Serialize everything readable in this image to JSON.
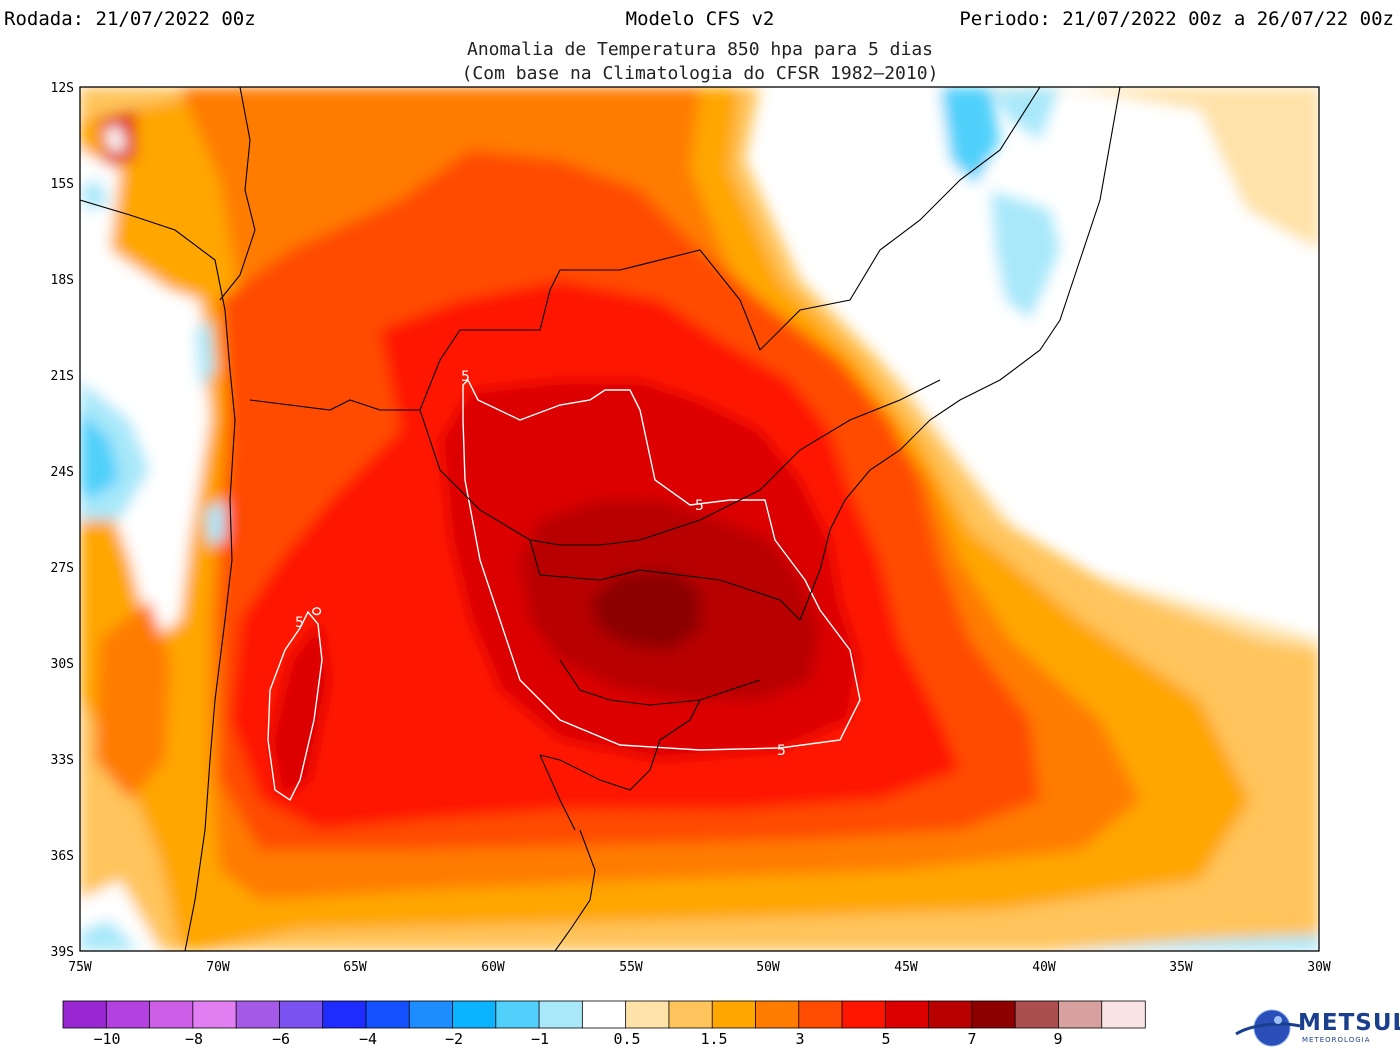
{
  "header": {
    "run": "Rodada: 21/07/2022 00z",
    "model": "Modelo CFS v2",
    "period": "Periodo: 21/07/2022 00z a 26/07/22 00z",
    "subtitle1": "Anomalia de Temperatura 850 hpa para 5 dias",
    "subtitle2": "(Com base na Climatologia do CFSR 1982–2010)"
  },
  "map": {
    "lat_labels": [
      "12S",
      "15S",
      "18S",
      "21S",
      "24S",
      "27S",
      "30S",
      "33S",
      "36S",
      "39S"
    ],
    "lon_labels": [
      "75W",
      "70W",
      "65W",
      "60W",
      "55W",
      "50W",
      "45W",
      "40W",
      "35W",
      "30W"
    ],
    "contour_labels": [
      "5",
      "5",
      "5",
      "5"
    ]
  },
  "colorbar": {
    "colors": [
      "#9a28d2",
      "#b340e0",
      "#cc5ee8",
      "#e07ef2",
      "#a45ae6",
      "#7a52f0",
      "#1e2cff",
      "#1450ff",
      "#1c8cff",
      "#0cb4ff",
      "#50d0fa",
      "#a8e8fa",
      "#ffffff",
      "#ffe2a8",
      "#ffc45c",
      "#ffa600",
      "#ff7c00",
      "#ff4c00",
      "#ff1600",
      "#dc0000",
      "#b80000",
      "#8c0000",
      "#aa4e4e",
      "#d8a09e",
      "#f8e4e4"
    ],
    "labels": [
      "−10",
      "−8",
      "−6",
      "−4",
      "−2",
      "−1",
      "0.5",
      "1.5",
      "3",
      "5",
      "7",
      "9"
    ]
  },
  "logo": {
    "text": "METSUL",
    "sub": "METEOROLOGIA"
  }
}
